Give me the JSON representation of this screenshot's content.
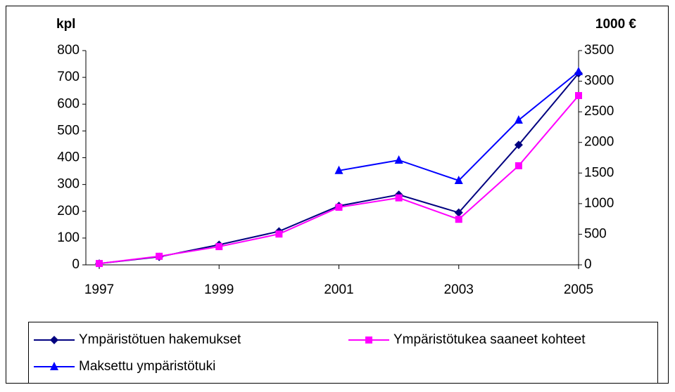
{
  "chart_data": {
    "type": "line",
    "y_label": "kpl",
    "y2_label": "1000 €",
    "x": [
      1997,
      1998,
      1999,
      2000,
      2001,
      2002,
      2003,
      2004,
      2005
    ],
    "xlim": [
      1997,
      2005
    ],
    "xticks": [
      1997,
      1999,
      2001,
      2003,
      2005
    ],
    "ylim": [
      0,
      800
    ],
    "yticks": [
      0,
      100,
      200,
      300,
      400,
      500,
      600,
      700,
      800
    ],
    "y2lim": [
      0,
      3500
    ],
    "y2ticks": [
      0,
      500,
      1000,
      1500,
      2000,
      2500,
      3000,
      3500
    ],
    "grid": false,
    "series": [
      {
        "name": "Ympäristötuen hakemukset",
        "color": "#000080",
        "marker": "diamond",
        "values": [
          5,
          30,
          75,
          125,
          220,
          262,
          195,
          448,
          715
        ]
      },
      {
        "name": "Ympäristötukea saaneet kohteet",
        "color": "#ff00ff",
        "marker": "square",
        "values": [
          5,
          32,
          68,
          115,
          215,
          250,
          170,
          370,
          632
        ]
      },
      {
        "name": "Maksettu ympäristötuki",
        "color": "#0000ff",
        "marker": "triangle",
        "axis": "y2",
        "values": [
          null,
          null,
          null,
          null,
          1540,
          1710,
          1377,
          2364,
          3156
        ]
      }
    ]
  }
}
